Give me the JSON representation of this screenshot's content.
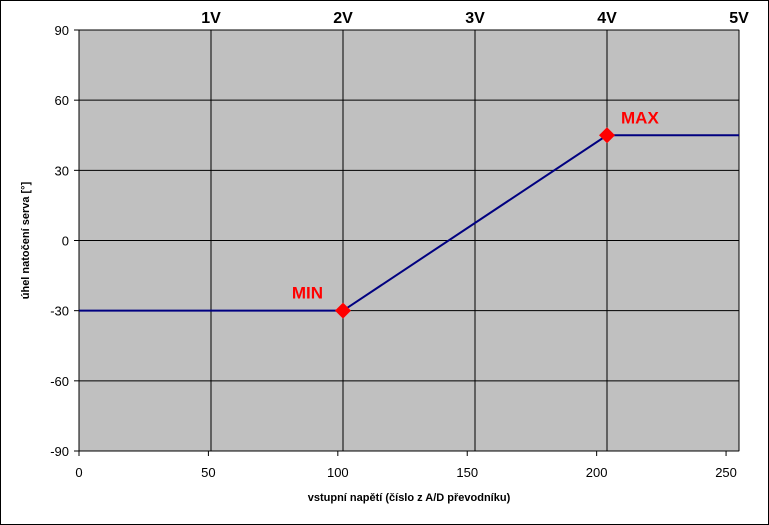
{
  "chart_data": {
    "type": "line",
    "title": "",
    "xlabel": "vstupní napětí (číslo z A/D převodníku)",
    "ylabel": "úhel natočení serva [°]",
    "xlim": [
      0,
      255
    ],
    "ylim": [
      -90,
      90
    ],
    "x_ticks": [
      0,
      50,
      100,
      150,
      200,
      250
    ],
    "y_ticks": [
      90,
      60,
      30,
      0,
      -30,
      -60,
      -90
    ],
    "y_tick_labels": [
      "90",
      "60",
      "30",
      "0",
      "-30",
      "-60",
      "-90"
    ],
    "grid": true,
    "plot_background": "#c0c0c0",
    "grid_color": "#000000",
    "secondary_x_axis": {
      "position": "top",
      "ticks": [
        51,
        102,
        153,
        204,
        255
      ],
      "labels": [
        "1V",
        "2V",
        "3V",
        "4V",
        "5V"
      ]
    },
    "series": [
      {
        "color": "#000080",
        "x": [
          0,
          102,
          204,
          255
        ],
        "y": [
          -30,
          -30,
          45,
          45
        ]
      }
    ],
    "markers": [
      {
        "label": "MIN",
        "x": 102,
        "y": -30,
        "color": "#ff0000"
      },
      {
        "label": "MAX",
        "x": 204,
        "y": 45,
        "color": "#ff0000"
      }
    ]
  }
}
